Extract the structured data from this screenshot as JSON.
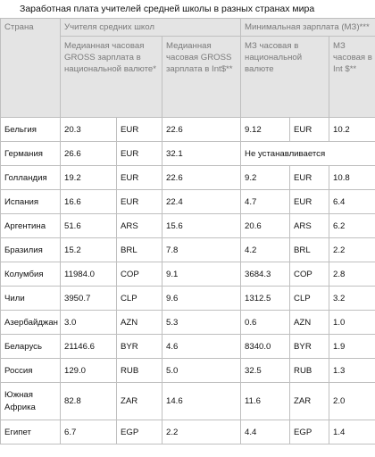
{
  "title": "Заработная плата учителей средней школы в разных странах мира",
  "headers": {
    "country": "Страна",
    "teachers_group": "Учителя средних школ",
    "min_wage_group": "Минимальная зарплата (МЗ)***",
    "teachers_local": "Медианная часовая GROSS зарплата в национальной валюте*",
    "teachers_int": "Медианная часовая GROSS зарплата в Int$**",
    "min_local": "МЗ часовая в национальной валюте",
    "min_int": "МЗ часовая в Int $**"
  },
  "rows": [
    {
      "country": "Бельгия",
      "t_local": "20.3",
      "t_cur": "EUR",
      "t_int": "22.6",
      "m_local": "9.12",
      "m_cur": "EUR",
      "m_int": "10.2"
    },
    {
      "country": "Германия",
      "t_local": "26.6",
      "t_cur": "EUR",
      "t_int": "32.1",
      "m_note": "Не устанавливается"
    },
    {
      "country": "Голландия",
      "t_local": "19.2",
      "t_cur": "EUR",
      "t_int": "22.6",
      "m_local": "9.2",
      "m_cur": "EUR",
      "m_int": "10.8"
    },
    {
      "country": "Испания",
      "t_local": "16.6",
      "t_cur": "EUR",
      "t_int": "22.4",
      "m_local": "4.7",
      "m_cur": "EUR",
      "m_int": "6.4"
    },
    {
      "country": "Аргентина",
      "t_local": "51.6",
      "t_cur": "ARS",
      "t_int": "15.6",
      "m_local": "20.6",
      "m_cur": "ARS",
      "m_int": "6.2"
    },
    {
      "country": "Бразилия",
      "t_local": "15.2",
      "t_cur": "BRL",
      "t_int": "7.8",
      "m_local": "4.2",
      "m_cur": "BRL",
      "m_int": "2.2"
    },
    {
      "country": "Колумбия",
      "t_local": "11984.0",
      "t_cur": "COP",
      "t_int": "9.1",
      "m_local": "3684.3",
      "m_cur": "COP",
      "m_int": "2.8"
    },
    {
      "country": "Чили",
      "t_local": "3950.7",
      "t_cur": "CLP",
      "t_int": "9.6",
      "m_local": "1312.5",
      "m_cur": "CLP",
      "m_int": "3.2"
    },
    {
      "country": "Азербайджан",
      "t_local": "3.0",
      "t_cur": "AZN",
      "t_int": "5.3",
      "m_local": "0.6",
      "m_cur": "AZN",
      "m_int": "1.0"
    },
    {
      "country": "Беларусь",
      "t_local": "21146.6",
      "t_cur": "BYR",
      "t_int": "4.6",
      "m_local": "8340.0",
      "m_cur": "BYR",
      "m_int": "1.9"
    },
    {
      "country": "Россия",
      "t_local": "129.0",
      "t_cur": "RUB",
      "t_int": "5.0",
      "m_local": "32.5",
      "m_cur": "RUB",
      "m_int": "1.3"
    },
    {
      "country": "Южная Африка",
      "t_local": "82.8",
      "t_cur": "ZAR",
      "t_int": "14.6",
      "m_local": "11.6",
      "m_cur": "ZAR",
      "m_int": "2.0",
      "tall": true
    },
    {
      "country": "Египет",
      "t_local": "6.7",
      "t_cur": "EGP",
      "t_int": "2.2",
      "m_local": "4.4",
      "m_cur": "EGP",
      "m_int": "1.4"
    }
  ]
}
